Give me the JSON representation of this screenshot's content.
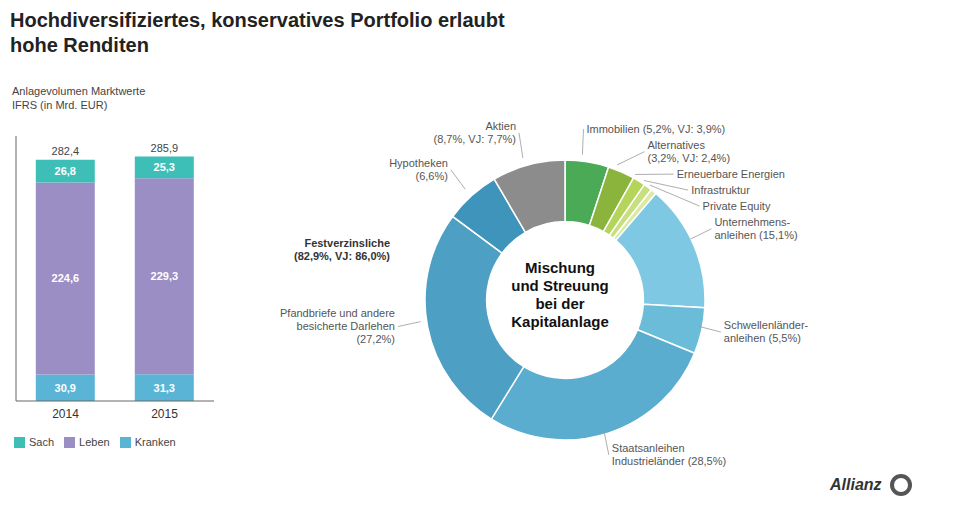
{
  "chart_data": [
    {
      "type": "bar",
      "title": "Hochdiversifiziertes, konservatives Portfolio erlaubt\nhohe Renditen",
      "subtitle": "Anlagevolumen Marktwerte\nIFRS (in Mrd. EUR)",
      "categories": [
        "2014",
        "2015"
      ],
      "stacked": true,
      "series": [
        {
          "name": "Sach",
          "color": "#3dbfb8",
          "values": [
            26.8,
            25.3
          ],
          "value_labels": [
            "26,8",
            "25,3"
          ]
        },
        {
          "name": "Leben",
          "color": "#9b8ec4",
          "values": [
            224.6,
            229.3
          ],
          "value_labels": [
            "224,6",
            "229,3"
          ]
        },
        {
          "name": "Kranken",
          "color": "#5ab4d6",
          "values": [
            30.9,
            31.3
          ],
          "value_labels": [
            "30,9",
            "31,3"
          ]
        }
      ],
      "totals": [
        282.4,
        285.9
      ],
      "total_labels": [
        "282,4",
        "285,9"
      ],
      "ylim": [
        0,
        310
      ],
      "tick_labels": "x",
      "grid": false,
      "legend": "bottom",
      "data_labels": true
    },
    {
      "type": "donut",
      "categories": [
        "Immobilien (5,2%, VJ: 3,9%)",
        "Alternatives\n(3,2%, VJ: 2,4%)",
        "Erneuerbare Energien",
        "Infrastruktur",
        "Private Equity",
        "Unternehmens-\nanleihen (15,1%)",
        "Schwellenländer-\nanleihen (5,5%)",
        "Staatsanleihen\nIndustrieländer (28,5%)",
        "Pfandbriefe und andere\nbesicherte Darlehen\n(27,2%)",
        "Hypotheken\n(6,6%)",
        "Aktien\n(8,7%, VJ: 7,7%)"
      ],
      "values": [
        5.2,
        3.2,
        1.5,
        1.0,
        0.7,
        15.1,
        5.5,
        28.5,
        27.2,
        6.6,
        8.7
      ],
      "colors": [
        "#4aaa55",
        "#8ab43c",
        "#b5d45a",
        "#c8df80",
        "#daeaa0",
        "#7ec8e3",
        "#6bbcd8",
        "#5aadce",
        "#4da0c4",
        "#3e94ba",
        "#8c8c8c"
      ],
      "annotations": [
        "Mischung\nund Streuung\nbei der\nKapitalanlage",
        "Festverzinsliche\n(82,9%, VJ: 86,0%)",
        "Allianz"
      ]
    }
  ]
}
